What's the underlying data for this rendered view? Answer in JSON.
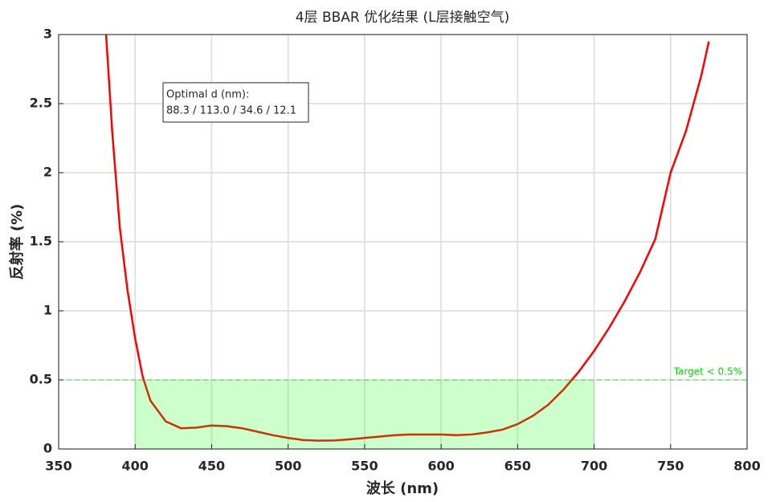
{
  "chart_data": {
    "type": "line",
    "title": "4层 BBAR 优化结果 (L层接触空气)",
    "xlabel": "波长 (nm)",
    "ylabel": "反射率 (%)",
    "x": [
      381,
      385,
      390,
      395,
      400,
      405,
      410,
      420,
      430,
      440,
      450,
      460,
      470,
      480,
      490,
      500,
      510,
      520,
      530,
      540,
      550,
      560,
      570,
      580,
      590,
      600,
      610,
      620,
      630,
      640,
      650,
      660,
      670,
      680,
      690,
      700,
      710,
      720,
      730,
      740,
      750,
      760,
      770,
      775
    ],
    "values": [
      3.0,
      2.3,
      1.6,
      1.15,
      0.8,
      0.52,
      0.35,
      0.2,
      0.15,
      0.155,
      0.17,
      0.165,
      0.15,
      0.125,
      0.1,
      0.08,
      0.065,
      0.06,
      0.062,
      0.07,
      0.08,
      0.09,
      0.1,
      0.105,
      0.105,
      0.105,
      0.1,
      0.105,
      0.12,
      0.14,
      0.18,
      0.24,
      0.32,
      0.43,
      0.56,
      0.71,
      0.88,
      1.07,
      1.28,
      1.52,
      2.0,
      2.3,
      2.7,
      2.95
    ],
    "color": "#ff0000",
    "target": {
      "value": 0.5,
      "label": "Target < 0.5%",
      "color": "#00dd00"
    },
    "band": {
      "xlim": [
        400,
        700
      ],
      "ylim": [
        0,
        0.5
      ],
      "color": "#00ff00"
    },
    "annotation": [
      "Optimal d (nm):",
      "88.3 / 113.0 / 34.6 / 12.1"
    ],
    "xlim": [
      350,
      800
    ],
    "xticks": [
      350,
      400,
      450,
      500,
      550,
      600,
      650,
      700,
      750,
      800
    ],
    "ylim": [
      0,
      3
    ],
    "yticks": [
      0,
      0.5,
      1,
      1.5,
      2,
      2.5,
      3
    ],
    "grid": true
  }
}
